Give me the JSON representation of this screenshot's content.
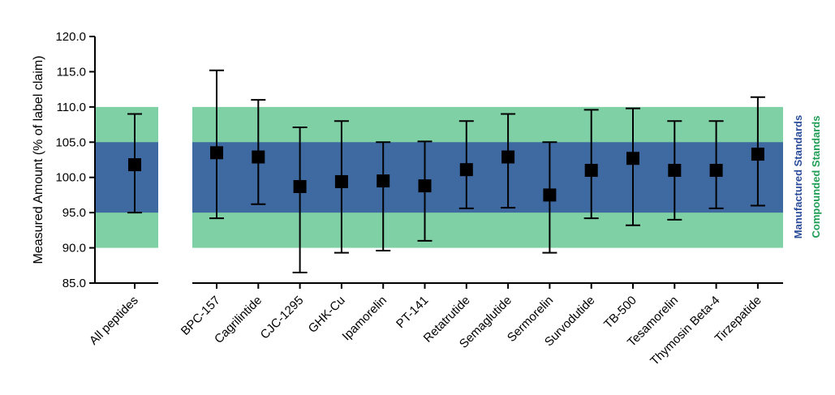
{
  "chart_data": {
    "type": "error-bar",
    "ylabel": "Measured Amount (% of label claim)",
    "ylim": [
      85,
      120
    ],
    "yticks": [
      "85.0",
      "90.0",
      "95.0",
      "100.0",
      "105.0",
      "110.0",
      "115.0",
      "120.0"
    ],
    "bands": [
      {
        "name": "Compounded Standards",
        "range": [
          90,
          110
        ],
        "color": "#80d0a5",
        "label_color": "#1e9e55"
      },
      {
        "name": "Manufactured Standards",
        "range": [
          95,
          105
        ],
        "color": "#3e6aa1",
        "label_color": "#2a4c9a"
      }
    ],
    "panels": [
      {
        "name": "summary",
        "points": [
          {
            "category": "All peptides",
            "mean": 101.8,
            "low": 95.0,
            "high": 109.0
          }
        ]
      },
      {
        "name": "individual",
        "points": [
          {
            "category": "BPC-157",
            "mean": 103.5,
            "low": 94.2,
            "high": 115.2
          },
          {
            "category": "Cagrilintide",
            "mean": 102.9,
            "low": 96.2,
            "high": 111.0
          },
          {
            "category": "CJC-1295",
            "mean": 98.7,
            "low": 86.5,
            "high": 107.1
          },
          {
            "category": "GHK-Cu",
            "mean": 99.4,
            "low": 89.3,
            "high": 108.0
          },
          {
            "category": "Ipamorelin",
            "mean": 99.5,
            "low": 89.6,
            "high": 105.0
          },
          {
            "category": "PT-141",
            "mean": 98.8,
            "low": 91.0,
            "high": 105.1
          },
          {
            "category": "Retatrutide",
            "mean": 101.1,
            "low": 95.6,
            "high": 108.0
          },
          {
            "category": "Semaglutide",
            "mean": 102.9,
            "low": 95.7,
            "high": 109.0
          },
          {
            "category": "Sermorelin",
            "mean": 97.5,
            "low": 89.3,
            "high": 105.0
          },
          {
            "category": "Survodutide",
            "mean": 101.0,
            "low": 94.2,
            "high": 109.6
          },
          {
            "category": "TB-500",
            "mean": 102.7,
            "low": 93.2,
            "high": 109.8
          },
          {
            "category": "Tesamorelin",
            "mean": 101.0,
            "low": 94.0,
            "high": 108.0
          },
          {
            "category": "Thymosin Beta-4",
            "mean": 101.0,
            "low": 95.6,
            "high": 108.0
          },
          {
            "category": "Tirzepatide",
            "mean": 103.3,
            "low": 96.0,
            "high": 111.4
          }
        ]
      }
    ]
  }
}
